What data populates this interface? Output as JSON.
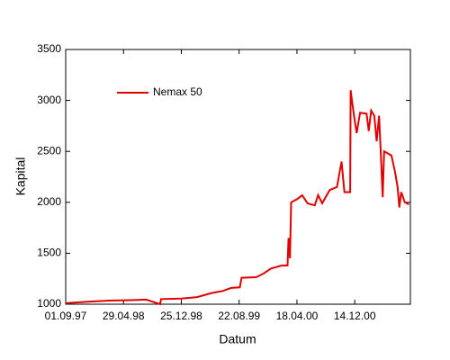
{
  "chart_data": {
    "type": "line",
    "xlabel": "Datum",
    "ylabel": "Kapital",
    "x": [
      "1997-09-01",
      "1997-12-01",
      "1998-03-01",
      "1998-06-01",
      "1998-08-01",
      "1998-09-28",
      "1998-10-02",
      "1998-12-25",
      "1999-03-01",
      "1999-05-01",
      "1999-06-15",
      "1999-07-20",
      "1999-08-25",
      "1999-09-01",
      "1999-11-01",
      "1999-12-01",
      "2000-01-01",
      "2000-02-15",
      "2000-03-10",
      "2000-03-14",
      "2000-03-20",
      "2000-03-25",
      "2000-04-18",
      "2000-05-10",
      "2000-06-01",
      "2000-07-01",
      "2000-07-15",
      "2000-08-01",
      "2000-09-01",
      "2000-10-01",
      "2000-10-20",
      "2000-11-01",
      "2000-11-25",
      "2000-11-27",
      "2000-12-05",
      "2000-12-14",
      "2000-12-22",
      "2001-01-05",
      "2001-02-01",
      "2001-02-10",
      "2001-02-20",
      "2001-03-05",
      "2001-03-15",
      "2001-03-25",
      "2001-04-02",
      "2001-04-09",
      "2001-04-15",
      "2001-05-15",
      "2001-05-30",
      "2001-06-10",
      "2001-06-17",
      "2001-06-25",
      "2001-07-10",
      "2001-07-27"
    ],
    "series": [
      {
        "name": "Nemax 50",
        "color": "#e00000",
        "values": [
          1010,
          1025,
          1035,
          1040,
          1045,
          1000,
          1050,
          1055,
          1070,
          1110,
          1130,
          1160,
          1165,
          1260,
          1265,
          1300,
          1350,
          1380,
          1380,
          1650,
          1450,
          2000,
          2030,
          2070,
          1990,
          1970,
          2070,
          1990,
          2120,
          2150,
          2400,
          2100,
          2100,
          3100,
          2950,
          2800,
          2680,
          2880,
          2870,
          2700,
          2900,
          2850,
          2600,
          2850,
          2450,
          2050,
          2500,
          2460,
          2300,
          2150,
          1950,
          2100,
          2000,
          1980
        ]
      }
    ],
    "xlim": [
      "1997-09-01",
      "2001-08-02"
    ],
    "xticks": [
      {
        "value": "1997-09-01",
        "label": "01.09.97"
      },
      {
        "value": "1998-04-29",
        "label": "29.04.98"
      },
      {
        "value": "1998-12-25",
        "label": "25.12.98"
      },
      {
        "value": "1999-08-22",
        "label": "22.08.99"
      },
      {
        "value": "2000-04-18",
        "label": "18.04.00"
      },
      {
        "value": "2000-12-14",
        "label": "14.12.00"
      }
    ],
    "ylim": [
      1000,
      3500
    ],
    "yticks": [
      1000,
      1500,
      2000,
      2500,
      3000,
      3500
    ],
    "legend": "upper left"
  }
}
